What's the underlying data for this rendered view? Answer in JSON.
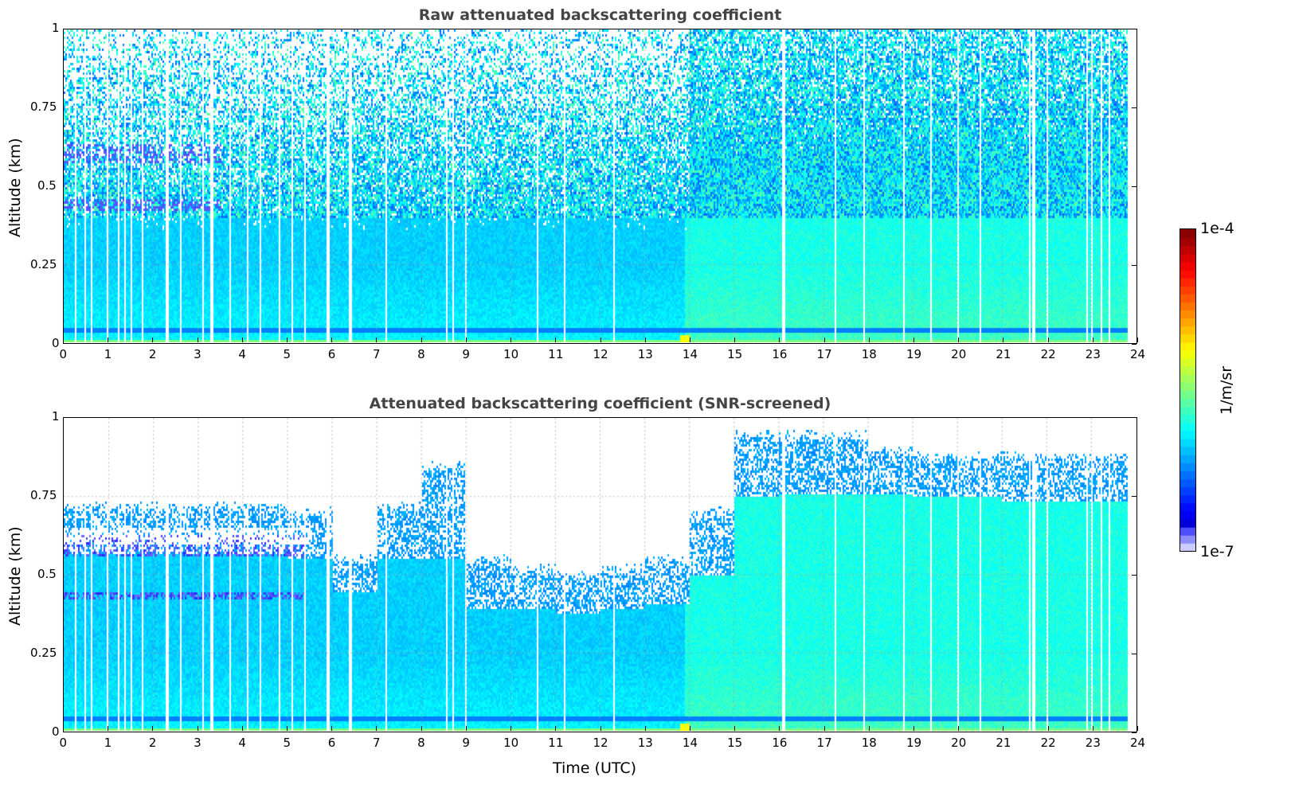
{
  "chart_data": [
    {
      "type": "heatmap",
      "title": "Raw attenuated backscattering coefficient",
      "xlabel": "",
      "ylabel": "Altitude (km)",
      "xlim": [
        0,
        24
      ],
      "ylim": [
        0,
        1
      ],
      "xticks": [
        "0",
        "1",
        "2",
        "3",
        "4",
        "5",
        "6",
        "7",
        "8",
        "9",
        "10",
        "11",
        "12",
        "13",
        "14",
        "15",
        "16",
        "17",
        "18",
        "19",
        "20",
        "21",
        "22",
        "23",
        "24"
      ],
      "yticks": [
        "0",
        "0.25",
        "0.5",
        "0.75",
        "1"
      ],
      "data_end_hour": 23.8,
      "grid": true
    },
    {
      "type": "heatmap",
      "title": "Attenuated backscattering coefficient (SNR-screened)",
      "xlabel": "Time (UTC)",
      "ylabel": "Altitude (km)",
      "xlim": [
        0,
        24
      ],
      "ylim": [
        0,
        1
      ],
      "xticks": [
        "0",
        "1",
        "2",
        "3",
        "4",
        "5",
        "6",
        "7",
        "8",
        "9",
        "10",
        "11",
        "12",
        "13",
        "14",
        "15",
        "16",
        "17",
        "18",
        "19",
        "20",
        "21",
        "22",
        "23",
        "24"
      ],
      "yticks": [
        "0",
        "0.25",
        "0.5",
        "0.75",
        "1"
      ],
      "data_end_hour": 23.8,
      "grid": true,
      "hourly_signal_top_km": [
        0.72,
        0.72,
        0.72,
        0.72,
        0.72,
        0.7,
        0.55,
        0.72,
        0.85,
        0.55,
        0.52,
        0.5,
        0.52,
        0.55,
        0.7,
        0.95,
        0.95,
        0.95,
        0.9,
        0.88,
        0.88,
        0.88,
        0.88,
        0.88
      ],
      "hourly_dense_top_km": [
        0.57,
        0.57,
        0.57,
        0.57,
        0.57,
        0.55,
        0.45,
        0.55,
        0.55,
        0.39,
        0.39,
        0.38,
        0.39,
        0.41,
        0.5,
        0.75,
        0.76,
        0.76,
        0.76,
        0.75,
        0.75,
        0.74,
        0.74,
        0.74
      ]
    }
  ],
  "colorbar": {
    "label": "1/m/sr",
    "min_label": "1e-7",
    "max_label": "1e-4",
    "scale": "log",
    "min": 1e-07,
    "max": 0.0001
  },
  "data_gap_hours": [
    0.25,
    0.45,
    0.6,
    0.95,
    1.2,
    1.35,
    1.5,
    1.75,
    2.3,
    2.6,
    3.1,
    3.3,
    3.7,
    4.1,
    4.4,
    4.8,
    5.1,
    5.4,
    5.9,
    6.4,
    7.2,
    8.55,
    8.7,
    9.0,
    10.6,
    11.2,
    12.3,
    16.1,
    17.25,
    17.9,
    18.8,
    19.4,
    20.0,
    20.5,
    21.6,
    21.7,
    22.0,
    22.9,
    23.0,
    23.2,
    23.4
  ]
}
